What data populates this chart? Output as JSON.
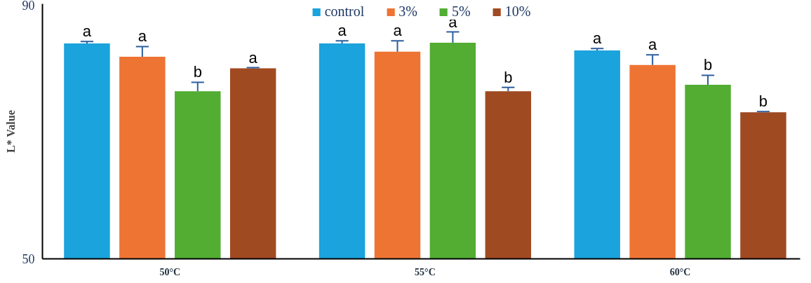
{
  "chart_data": {
    "type": "bar",
    "ylabel": "L* Value",
    "categories": [
      "50°C",
      "55°C",
      "60°C"
    ],
    "series": [
      {
        "name": "control",
        "color": "#1aa3dc",
        "values": [
          83.8,
          83.8,
          82.7
        ],
        "errors": [
          [
            83.8,
            84.1
          ],
          [
            83.8,
            84.2
          ],
          [
            82.7,
            83.0
          ]
        ],
        "value_labels": [
          "a",
          "a",
          "a"
        ]
      },
      {
        "name": "3%",
        "color": "#ee7434",
        "values": [
          81.7,
          82.5,
          80.4
        ],
        "errors": [
          [
            81.7,
            83.3
          ],
          [
            82.5,
            84.2
          ],
          [
            80.4,
            82.0
          ]
        ],
        "value_labels": [
          "a",
          "a",
          "a"
        ]
      },
      {
        "name": "5%",
        "color": "#52ad32",
        "values": [
          76.3,
          83.9,
          77.3
        ],
        "errors": [
          [
            76.3,
            77.7
          ],
          [
            83.9,
            85.6
          ],
          [
            77.3,
            78.8
          ]
        ],
        "value_labels": [
          "b",
          "a",
          "b"
        ]
      },
      {
        "name": "10%",
        "color": "#a04a22",
        "values": [
          79.9,
          76.3,
          73.0
        ],
        "errors": [
          [
            79.9,
            80.0
          ],
          [
            76.3,
            76.9
          ],
          [
            73.0,
            73.1
          ]
        ],
        "value_labels": [
          "a",
          "b",
          "b"
        ]
      }
    ],
    "ylim": [
      50,
      90
    ],
    "yticks": [
      50,
      90
    ],
    "grid": false,
    "legend": "top"
  }
}
